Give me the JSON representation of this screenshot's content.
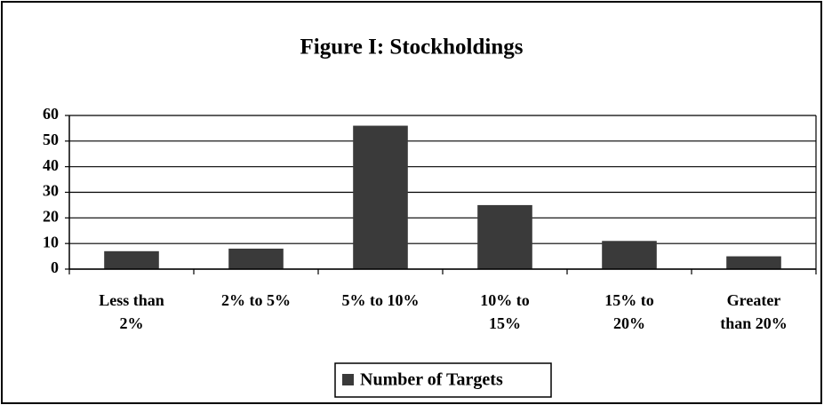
{
  "chart_data": {
    "type": "bar",
    "title": "Figure I: Stockholdings",
    "categories": [
      "Less than 2%",
      "2% to 5%",
      "5% to 10%",
      "10% to 15%",
      "15% to 20%",
      "Greater than 20%"
    ],
    "series": [
      {
        "name": "Number of Targets",
        "color": "#3a3a3a",
        "values": [
          7,
          8,
          56,
          25,
          11,
          5
        ]
      }
    ],
    "ylim": [
      0,
      60
    ],
    "yticks": [
      0,
      10,
      20,
      30,
      40,
      50,
      60
    ],
    "grid": true,
    "legend": "bottom"
  }
}
